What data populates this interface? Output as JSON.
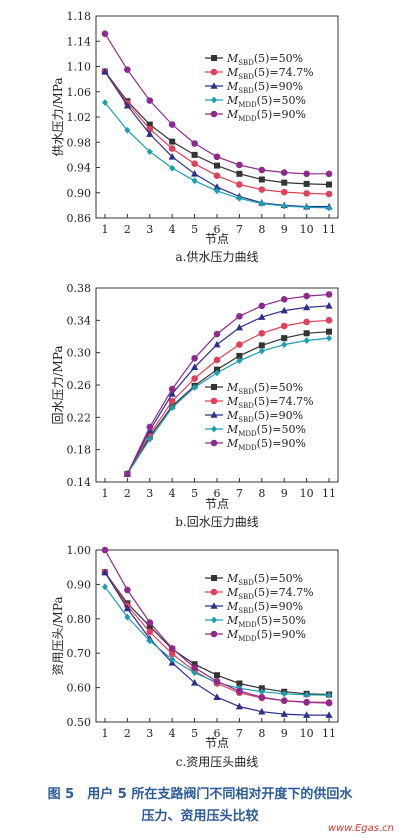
{
  "figure": {
    "caption_line1": "图 5　用户 5 所在支路阀门不同相对开度下的供回水",
    "caption_line2": "压力、资用压头比较",
    "watermark": "www.Egas.cn"
  },
  "legend": [
    {
      "name": "MSBD(5)=50%",
      "main": "M",
      "sub": "SBD",
      "rest": "(5)=50%",
      "color": "#333333",
      "marker": "square"
    },
    {
      "name": "MSBD(5)=74.7%",
      "main": "M",
      "sub": "SBD",
      "rest": "(5)=74.7%",
      "color": "#e0405a",
      "marker": "circle"
    },
    {
      "name": "MSBD(5)=90%",
      "main": "M",
      "sub": "SBD",
      "rest": "(5)=90%",
      "color": "#2c2f8f",
      "marker": "triangle"
    },
    {
      "name": "MMDD(5)=50%",
      "main": "M",
      "sub": "MDD",
      "rest": "(5)=50%",
      "color": "#1a9fb0",
      "marker": "diamond"
    },
    {
      "name": "MMDD(5)=90%",
      "main": "M",
      "sub": "MDD",
      "rest": "(5)=90%",
      "color": "#8e2a8f",
      "marker": "circle"
    }
  ],
  "chart_data": [
    {
      "type": "line",
      "title": "a.供水压力曲线",
      "xlabel": "节点",
      "ylabel": "供水压力/MPa",
      "x": [
        1,
        2,
        3,
        4,
        5,
        6,
        7,
        8,
        9,
        10,
        11
      ],
      "xlim": [
        0.6,
        11.4
      ],
      "ylim": [
        0.86,
        1.18
      ],
      "yticks": [
        0.86,
        0.9,
        0.94,
        0.98,
        1.02,
        1.06,
        1.1,
        1.14,
        1.18
      ],
      "ytick_labels": [
        "0.86",
        "0.90",
        "0.94",
        "0.98",
        "1.02",
        "1.06",
        "1.10",
        "1.14",
        "1.18"
      ],
      "legend_position": "top-right",
      "series": [
        {
          "name": "MSBD(5)=50%",
          "values": [
            1.092,
            1.045,
            1.008,
            0.981,
            0.96,
            0.943,
            0.93,
            0.921,
            0.916,
            0.914,
            0.913
          ]
        },
        {
          "name": "MSBD(5)=74.7%",
          "values": [
            1.092,
            1.042,
            1.001,
            0.97,
            0.946,
            0.927,
            0.913,
            0.905,
            0.901,
            0.899,
            0.898
          ]
        },
        {
          "name": "MSBD(5)=90%",
          "values": [
            1.092,
            1.038,
            0.993,
            0.957,
            0.93,
            0.909,
            0.894,
            0.884,
            0.88,
            0.878,
            0.878
          ]
        },
        {
          "name": "MMDD(5)=50%",
          "values": [
            1.043,
            0.999,
            0.965,
            0.939,
            0.919,
            0.903,
            0.891,
            0.883,
            0.879,
            0.877,
            0.876
          ]
        },
        {
          "name": "MMDD(5)=90%",
          "values": [
            1.152,
            1.095,
            1.046,
            1.008,
            0.978,
            0.957,
            0.944,
            0.936,
            0.932,
            0.93,
            0.93
          ]
        }
      ]
    },
    {
      "type": "line",
      "title": "b.回水压力曲线",
      "xlabel": "节点",
      "ylabel": "回水压力/MPa",
      "x": [
        2,
        3,
        4,
        5,
        6,
        7,
        8,
        9,
        10,
        11
      ],
      "xlim": [
        0.6,
        11.4
      ],
      "ylim": [
        0.14,
        0.38
      ],
      "yticks": [
        0.14,
        0.18,
        0.22,
        0.26,
        0.3,
        0.34,
        0.38
      ],
      "ytick_labels": [
        "0.14",
        "0.18",
        "0.22",
        "0.26",
        "0.30",
        "0.34",
        "0.38"
      ],
      "legend_position": "bottom-right",
      "series": [
        {
          "name": "MSBD(5)=50%",
          "values": [
            0.15,
            0.196,
            0.234,
            0.259,
            0.279,
            0.296,
            0.309,
            0.318,
            0.324,
            0.326
          ]
        },
        {
          "name": "MSBD(5)=74.7%",
          "values": [
            0.15,
            0.199,
            0.24,
            0.268,
            0.291,
            0.31,
            0.324,
            0.333,
            0.338,
            0.34
          ]
        },
        {
          "name": "MSBD(5)=90%",
          "values": [
            0.15,
            0.204,
            0.249,
            0.282,
            0.31,
            0.331,
            0.344,
            0.352,
            0.356,
            0.358
          ]
        },
        {
          "name": "MMDD(5)=50%",
          "values": [
            0.15,
            0.193,
            0.232,
            0.257,
            0.275,
            0.29,
            0.302,
            0.31,
            0.315,
            0.318
          ]
        },
        {
          "name": "MMDD(5)=90%",
          "values": [
            0.15,
            0.208,
            0.255,
            0.293,
            0.323,
            0.345,
            0.358,
            0.366,
            0.37,
            0.372
          ]
        }
      ]
    },
    {
      "type": "line",
      "title": "c.资用压头曲线",
      "xlabel": "节点",
      "ylabel": "资用压头/MPa",
      "x": [
        1,
        2,
        3,
        4,
        5,
        6,
        7,
        8,
        9,
        10,
        11
      ],
      "xlim": [
        0.6,
        11.4
      ],
      "ylim": [
        0.5,
        1.0
      ],
      "yticks": [
        0.5,
        0.6,
        0.7,
        0.8,
        0.9,
        1.0
      ],
      "ytick_labels": [
        "0.50",
        "0.60",
        "0.70",
        "0.80",
        "0.90",
        "1.00"
      ],
      "legend_position": "top-right",
      "series": [
        {
          "name": "MSBD(5)=50%",
          "values": [
            0.935,
            0.845,
            0.778,
            0.712,
            0.668,
            0.636,
            0.612,
            0.598,
            0.588,
            0.582,
            0.58
          ]
        },
        {
          "name": "MSBD(5)=74.7%",
          "values": [
            0.935,
            0.838,
            0.762,
            0.698,
            0.648,
            0.612,
            0.585,
            0.57,
            0.562,
            0.558,
            0.557
          ]
        },
        {
          "name": "MSBD(5)=90%",
          "values": [
            0.935,
            0.83,
            0.742,
            0.672,
            0.614,
            0.572,
            0.545,
            0.53,
            0.523,
            0.52,
            0.52
          ]
        },
        {
          "name": "MMDD(5)=50%",
          "values": [
            0.893,
            0.805,
            0.736,
            0.682,
            0.643,
            0.615,
            0.598,
            0.588,
            0.582,
            0.579,
            0.578
          ]
        },
        {
          "name": "MMDD(5)=90%",
          "values": [
            1.0,
            0.884,
            0.789,
            0.714,
            0.658,
            0.618,
            0.59,
            0.572,
            0.562,
            0.557,
            0.555
          ]
        }
      ]
    }
  ]
}
